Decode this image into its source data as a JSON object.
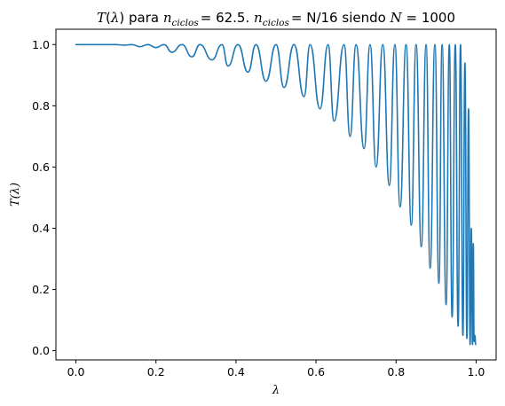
{
  "chart_data": {
    "type": "line",
    "title": {
      "t_symbol": "T",
      "paren_open": "(",
      "lambda_symbol": "λ",
      "paren_close": ")",
      "para_word": "para",
      "n_symbol": "n",
      "ciclos_sub": "ciclos",
      "eq_value_1": "= 62.5.",
      "eq_text_2": "= N/16",
      "siendo_word": "siendo",
      "N_symbol": "N",
      "eq_value_3": "= 1000"
    },
    "xlabel": "λ",
    "ylabel": "T(λ)",
    "xlim": [
      -0.05,
      1.05
    ],
    "ylim": [
      -0.03,
      1.05
    ],
    "x_ticks": [
      0.0,
      0.2,
      0.4,
      0.6,
      0.8,
      1.0
    ],
    "x_tick_labels": [
      "0.0",
      "0.2",
      "0.4",
      "0.6",
      "0.8",
      "1.0"
    ],
    "y_ticks": [
      0.0,
      0.2,
      0.4,
      0.6,
      0.8,
      1.0
    ],
    "y_tick_labels": [
      "0.0",
      "0.2",
      "0.4",
      "0.6",
      "0.8",
      "1.0"
    ],
    "grid": false,
    "line_color": "#1f77b4",
    "series": [
      {
        "x": [
          0.0,
          0.1,
          0.12,
          0.14,
          0.16,
          0.18,
          0.2,
          0.22,
          0.24,
          0.265,
          0.29,
          0.31,
          0.34,
          0.365,
          0.38,
          0.405,
          0.43,
          0.45,
          0.475,
          0.5,
          0.52,
          0.545,
          0.57,
          0.585,
          0.61,
          0.63,
          0.645,
          0.67,
          0.685,
          0.7,
          0.72,
          0.735,
          0.75,
          0.767,
          0.783,
          0.797,
          0.81,
          0.825,
          0.838,
          0.85,
          0.863,
          0.875,
          0.885,
          0.897,
          0.907,
          0.915,
          0.925,
          0.933,
          0.94,
          0.948,
          0.955,
          0.961,
          0.967,
          0.972,
          0.977,
          0.981,
          0.985,
          0.988,
          0.991,
          0.993,
          0.995,
          0.997,
          0.999
        ],
        "y": [
          1.0,
          1.0,
          0.998,
          1.0,
          0.993,
          1.0,
          0.99,
          1.0,
          0.975,
          1.0,
          0.96,
          1.0,
          0.95,
          1.0,
          0.93,
          1.0,
          0.91,
          1.0,
          0.88,
          1.0,
          0.86,
          1.0,
          0.83,
          1.0,
          0.79,
          1.0,
          0.75,
          1.0,
          0.7,
          1.0,
          0.66,
          1.0,
          0.6,
          1.0,
          0.54,
          1.0,
          0.47,
          1.0,
          0.41,
          1.0,
          0.34,
          1.0,
          0.27,
          1.0,
          0.22,
          1.0,
          0.15,
          1.0,
          0.11,
          1.0,
          0.08,
          1.0,
          0.05,
          0.94,
          0.04,
          0.79,
          0.02,
          0.4,
          0.02,
          0.35,
          0.03,
          0.05,
          0.02
        ]
      }
    ]
  }
}
